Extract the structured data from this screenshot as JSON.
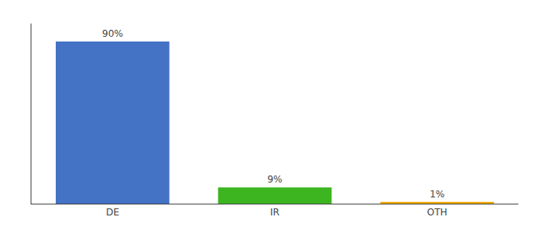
{
  "chart_data": {
    "type": "bar",
    "categories": [
      "DE",
      "IR",
      "OTH"
    ],
    "values": [
      90,
      9,
      1
    ],
    "value_labels": [
      "90%",
      "9%",
      "1%"
    ],
    "data_labels": true,
    "colors": [
      "#4472c4",
      "#3cb520",
      "#f0a500"
    ],
    "ylim": [
      0,
      100
    ],
    "grid": false,
    "tick_labels": "x"
  }
}
